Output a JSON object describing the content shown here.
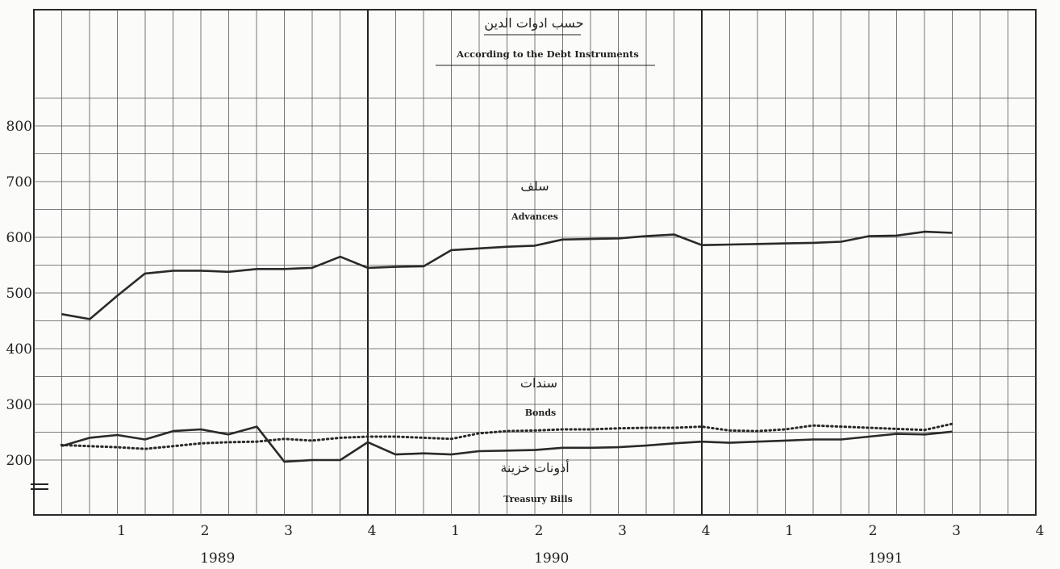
{
  "chart_data": {
    "type": "line",
    "title_ar": "حسب ادوات الدين",
    "title_en": "According to the Debt Instruments",
    "xlabel": "",
    "ylabel": "",
    "ylim": [
      150,
      900
    ],
    "y_ticks": [
      "200",
      "300",
      "400",
      "500",
      "600",
      "700",
      "800"
    ],
    "x_quarter_labels": [
      "1",
      "2",
      "3",
      "4",
      "1",
      "2",
      "3",
      "4",
      "1",
      "2",
      "3",
      "4"
    ],
    "years": [
      "1989",
      "1990",
      "1991"
    ],
    "grid": true,
    "series": [
      {
        "name_ar": "سلف",
        "name_en": "Advances",
        "style": "solid",
        "color": "#2a2a2a",
        "x": [
          0.33,
          0.67,
          1.0,
          1.33,
          1.67,
          2.0,
          2.33,
          2.67,
          3.0,
          3.33,
          3.67,
          4.0,
          4.33,
          4.67,
          5.0,
          5.33,
          5.67,
          6.0,
          6.33,
          6.67,
          7.0,
          7.33,
          7.67,
          8.0,
          8.33,
          8.67,
          9.0,
          9.33,
          9.67,
          10.0,
          10.33,
          10.67,
          11.0
        ],
        "values": [
          462,
          453,
          495,
          535,
          540,
          540,
          538,
          543,
          543,
          545,
          565,
          545,
          547,
          548,
          577,
          580,
          583,
          585,
          596,
          597,
          598,
          602,
          605,
          586,
          587,
          588,
          589,
          590,
          592,
          602,
          603,
          610,
          608
        ]
      },
      {
        "name_ar": "سندات",
        "name_en": "Bonds",
        "style": "dotted",
        "color": "#2a2a2a",
        "x": [
          0.33,
          0.67,
          1.0,
          1.33,
          1.67,
          2.0,
          2.33,
          2.67,
          3.0,
          3.33,
          3.67,
          4.0,
          4.33,
          4.67,
          5.0,
          5.33,
          5.67,
          6.0,
          6.33,
          6.67,
          7.0,
          7.33,
          7.67,
          8.0,
          8.33,
          8.67,
          9.0,
          9.33,
          9.67,
          10.0,
          10.33,
          10.67,
          11.0
        ],
        "values": [
          227,
          225,
          223,
          220,
          225,
          230,
          232,
          233,
          238,
          235,
          240,
          242,
          242,
          240,
          238,
          248,
          252,
          253,
          255,
          255,
          257,
          258,
          258,
          260,
          253,
          252,
          255,
          262,
          260,
          258,
          256,
          254,
          265
        ]
      },
      {
        "name_ar": "أذونات خزينة",
        "name_en": "Treasury Bills",
        "style": "solid",
        "color": "#2a2a2a",
        "x": [
          0.33,
          0.67,
          1.0,
          1.33,
          1.67,
          2.0,
          2.33,
          2.67,
          3.0,
          3.33,
          3.67,
          4.0,
          4.33,
          4.67,
          5.0,
          5.33,
          5.67,
          6.0,
          6.33,
          6.67,
          7.0,
          7.33,
          7.67,
          8.0,
          8.33,
          8.67,
          9.0,
          9.33,
          9.67,
          10.0,
          10.33,
          10.67,
          11.0
        ],
        "values": [
          225,
          240,
          245,
          237,
          252,
          255,
          246,
          260,
          197,
          200,
          200,
          232,
          210,
          212,
          210,
          216,
          217,
          218,
          222,
          222,
          223,
          226,
          230,
          233,
          231,
          233,
          235,
          237,
          237,
          242,
          247,
          246,
          251
        ]
      }
    ]
  }
}
